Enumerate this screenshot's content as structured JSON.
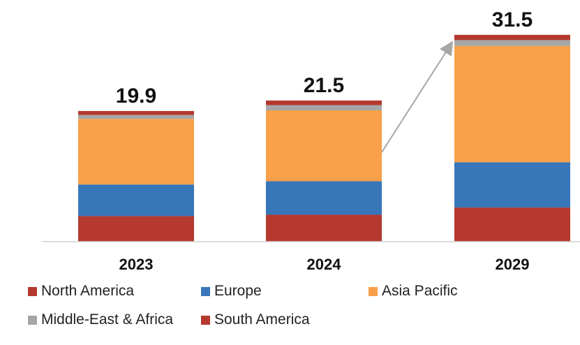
{
  "chart_data": {
    "type": "bar",
    "stacked": true,
    "title": "",
    "xlabel": "",
    "ylabel": "",
    "categories": [
      "2023",
      "2024",
      "2029"
    ],
    "totals": [
      19.9,
      21.5,
      31.5
    ],
    "series": [
      {
        "name": "South America",
        "color": "#b5392e",
        "values": [
          3.9,
          4.1,
          5.2
        ]
      },
      {
        "name": "Europe",
        "color": "#3876ba",
        "values": [
          4.8,
          5.1,
          6.9
        ]
      },
      {
        "name": "Asia Pacific",
        "color": "#f9a04a",
        "values": [
          10.0,
          10.8,
          17.7
        ]
      },
      {
        "name": "Middle-East & Africa",
        "color": "#a6a6a6",
        "values": [
          0.6,
          0.8,
          0.9
        ]
      },
      {
        "name": "North America",
        "color": "#b5392e",
        "values": [
          0.6,
          0.7,
          0.8
        ]
      }
    ],
    "legend": [
      {
        "name": "North America",
        "color": "#b5392e"
      },
      {
        "name": "Europe",
        "color": "#3876ba"
      },
      {
        "name": "Asia Pacific",
        "color": "#f9a04a"
      },
      {
        "name": "Middle-East & Africa",
        "color": "#a6a6a6"
      },
      {
        "name": "South America",
        "color": "#b5392e"
      }
    ],
    "annotation": {
      "type": "arrow",
      "from": "2024",
      "to": "2029",
      "color": "#a6a6a6"
    },
    "legend_position": "bottom",
    "grid": false
  }
}
